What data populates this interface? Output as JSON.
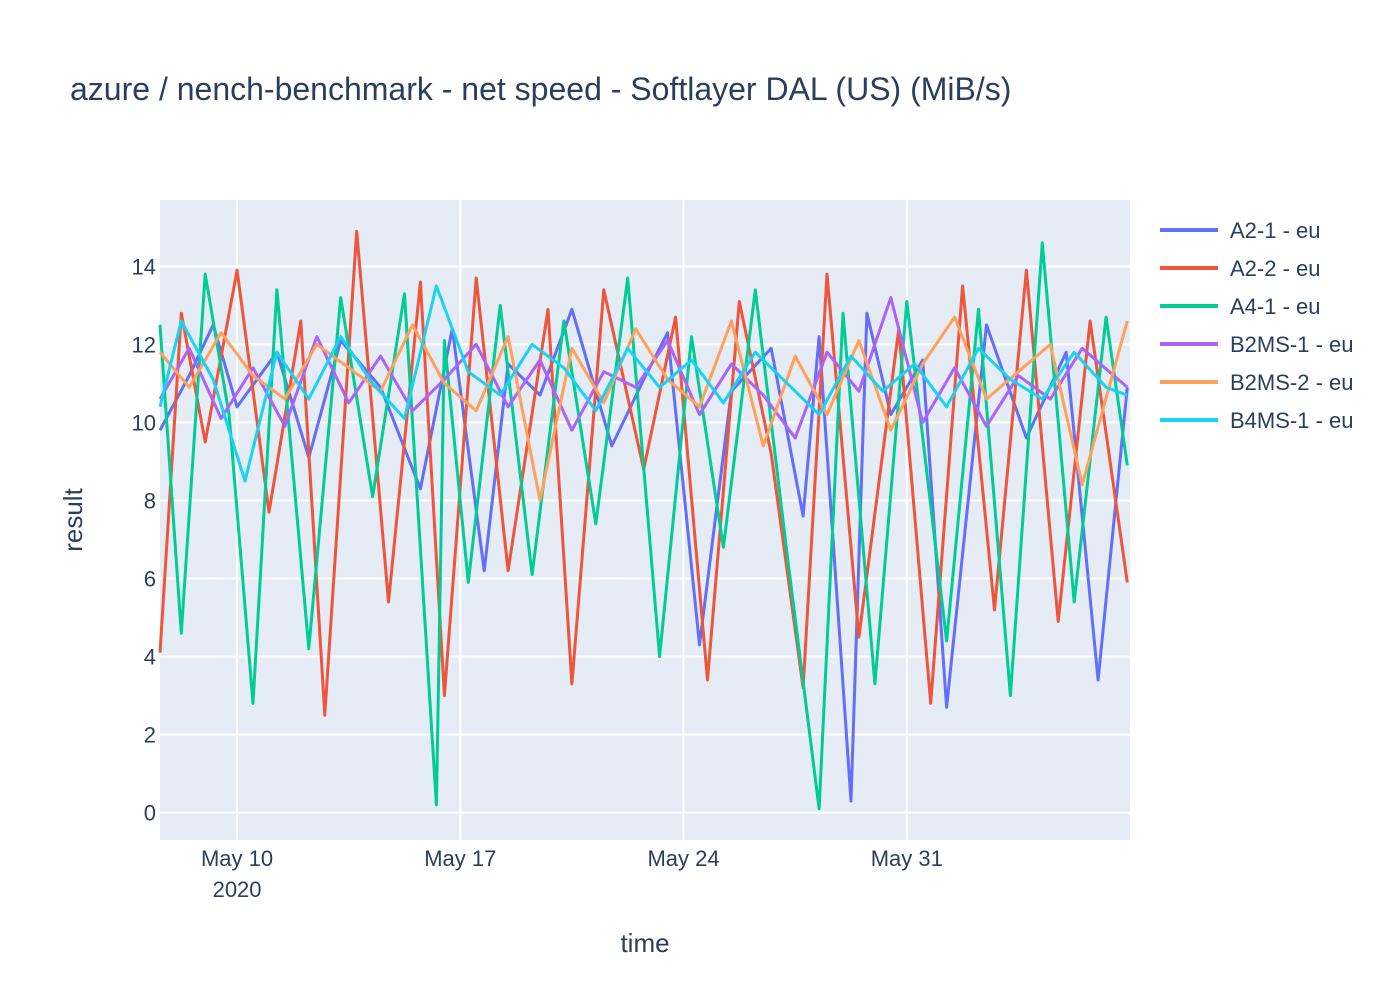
{
  "chart_data": {
    "type": "line",
    "title": "azure / nench-benchmark - net speed - Softlayer DAL (US) (MiB/s)",
    "xlabel": "time",
    "ylabel": "result",
    "x_range": [
      "2020-05-07T14:00:00",
      "2020-06-07T00:00:00"
    ],
    "ylim": [
      -0.7,
      15.7
    ],
    "y_ticks": [
      0,
      2,
      4,
      6,
      8,
      10,
      12,
      14
    ],
    "x_ticks": [
      {
        "date": "2020-05-10",
        "label": "May 10",
        "sublabel": "2020"
      },
      {
        "date": "2020-05-17",
        "label": "May 17",
        "sublabel": ""
      },
      {
        "date": "2020-05-24",
        "label": "May 24",
        "sublabel": ""
      },
      {
        "date": "2020-05-31",
        "label": "May 31",
        "sublabel": ""
      }
    ],
    "grid": true,
    "legend_position": "right",
    "plot_background": "#e5ecf6",
    "series": [
      {
        "name": "A2-1 - eu",
        "color": "#636efa",
        "x": [
          "2020-05-07T14:00",
          "2020-05-08T12:00",
          "2020-05-09T06:00",
          "2020-05-10T00:00",
          "2020-05-11T06:00",
          "2020-05-12T06:00",
          "2020-05-13T06:00",
          "2020-05-14T12:00",
          "2020-05-15T18:00",
          "2020-05-16T18:00",
          "2020-05-17T18:00",
          "2020-05-18T12:00",
          "2020-05-19T12:00",
          "2020-05-20T12:00",
          "2020-05-21T18:00",
          "2020-05-22T18:00",
          "2020-05-23T12:00",
          "2020-05-24T12:00",
          "2020-05-25T12:00",
          "2020-05-26T18:00",
          "2020-05-27T18:00",
          "2020-05-28T06:00",
          "2020-05-29T06:00",
          "2020-05-29T18:00",
          "2020-05-30T12:00",
          "2020-05-31T12:00",
          "2020-06-01T06:00",
          "2020-06-02T12:00",
          "2020-06-03T18:00",
          "2020-06-05T00:00",
          "2020-06-06T00:00",
          "2020-06-06T22:00"
        ],
        "y": [
          9.8,
          11.2,
          12.5,
          10.4,
          11.8,
          9.1,
          12.1,
          10.9,
          8.3,
          12.4,
          6.2,
          11.5,
          10.7,
          12.9,
          9.4,
          11.1,
          12.3,
          4.3,
          10.8,
          11.9,
          7.6,
          12.2,
          0.3,
          12.8,
          10.2,
          11.6,
          2.7,
          12.5,
          9.6,
          11.8,
          3.4,
          10.9
        ]
      },
      {
        "name": "A2-2 - eu",
        "color": "#ef553b",
        "x": [
          "2020-05-07T14:00",
          "2020-05-08T06:00",
          "2020-05-09T00:00",
          "2020-05-10T00:00",
          "2020-05-11T00:00",
          "2020-05-12T00:00",
          "2020-05-12T18:00",
          "2020-05-13T18:00",
          "2020-05-14T18:00",
          "2020-05-15T18:00",
          "2020-05-16T12:00",
          "2020-05-17T12:00",
          "2020-05-18T12:00",
          "2020-05-19T18:00",
          "2020-05-20T12:00",
          "2020-05-21T12:00",
          "2020-05-22T18:00",
          "2020-05-23T18:00",
          "2020-05-24T18:00",
          "2020-05-25T18:00",
          "2020-05-26T18:00",
          "2020-05-27T18:00",
          "2020-05-28T12:00",
          "2020-05-29T12:00",
          "2020-05-30T18:00",
          "2020-05-31T18:00",
          "2020-06-01T18:00",
          "2020-06-02T18:00",
          "2020-06-03T18:00",
          "2020-06-04T18:00",
          "2020-06-05T18:00",
          "2020-06-06T22:00"
        ],
        "y": [
          4.1,
          12.8,
          9.5,
          13.9,
          7.7,
          12.6,
          2.5,
          14.9,
          5.4,
          13.6,
          3.0,
          13.7,
          6.2,
          12.9,
          3.3,
          13.4,
          8.8,
          12.7,
          3.4,
          13.1,
          9.2,
          3.2,
          13.8,
          4.5,
          12.4,
          2.8,
          13.5,
          5.2,
          13.9,
          4.9,
          12.6,
          5.9
        ]
      },
      {
        "name": "A4-1 - eu",
        "color": "#00cc96",
        "x": [
          "2020-05-07T14:00",
          "2020-05-08T06:00",
          "2020-05-09T00:00",
          "2020-05-09T18:00",
          "2020-05-10T12:00",
          "2020-05-11T06:00",
          "2020-05-12T06:00",
          "2020-05-13T06:00",
          "2020-05-14T06:00",
          "2020-05-15T06:00",
          "2020-05-16T06:00",
          "2020-05-16T12:00",
          "2020-05-17T06:00",
          "2020-05-18T06:00",
          "2020-05-19T06:00",
          "2020-05-20T06:00",
          "2020-05-21T06:00",
          "2020-05-22T06:00",
          "2020-05-23T06:00",
          "2020-05-24T06:00",
          "2020-05-25T06:00",
          "2020-05-26T06:00",
          "2020-05-27T06:00",
          "2020-05-28T06:00",
          "2020-05-29T00:00",
          "2020-05-30T00:00",
          "2020-05-31T00:00",
          "2020-06-01T06:00",
          "2020-06-02T06:00",
          "2020-06-03T06:00",
          "2020-06-04T06:00",
          "2020-06-05T06:00",
          "2020-06-06T06:00",
          "2020-06-06T22:00"
        ],
        "y": [
          12.5,
          4.6,
          13.8,
          10.2,
          2.8,
          13.4,
          4.2,
          13.2,
          8.1,
          13.3,
          0.2,
          12.1,
          5.9,
          13.0,
          6.1,
          12.6,
          7.4,
          13.7,
          4.0,
          12.2,
          6.8,
          13.4,
          6.6,
          0.1,
          12.8,
          3.3,
          13.1,
          4.4,
          12.9,
          3.0,
          14.6,
          5.4,
          12.7,
          8.9
        ]
      },
      {
        "name": "B2MS-1 - eu",
        "color": "#ab63fa",
        "x": [
          "2020-05-07T14:00",
          "2020-05-08T12:00",
          "2020-05-09T12:00",
          "2020-05-10T12:00",
          "2020-05-11T12:00",
          "2020-05-12T12:00",
          "2020-05-13T12:00",
          "2020-05-14T12:00",
          "2020-05-15T12:00",
          "2020-05-16T12:00",
          "2020-05-17T12:00",
          "2020-05-18T12:00",
          "2020-05-19T12:00",
          "2020-05-20T12:00",
          "2020-05-21T12:00",
          "2020-05-22T12:00",
          "2020-05-23T12:00",
          "2020-05-24T12:00",
          "2020-05-25T12:00",
          "2020-05-26T12:00",
          "2020-05-27T12:00",
          "2020-05-28T12:00",
          "2020-05-29T12:00",
          "2020-05-30T12:00",
          "2020-05-31T12:00",
          "2020-06-01T12:00",
          "2020-06-02T12:00",
          "2020-06-03T12:00",
          "2020-06-04T12:00",
          "2020-06-05T12:00",
          "2020-06-06T22:00"
        ],
        "y": [
          10.6,
          11.9,
          10.1,
          11.4,
          9.9,
          12.2,
          10.5,
          11.7,
          10.3,
          11.1,
          12.0,
          10.4,
          11.6,
          9.8,
          11.3,
          10.9,
          12.1,
          10.2,
          11.5,
          10.7,
          9.6,
          11.8,
          10.8,
          13.2,
          10.0,
          11.4,
          9.9,
          11.2,
          10.6,
          11.9,
          10.9
        ]
      },
      {
        "name": "B2MS-2 - eu",
        "color": "#ffa15a",
        "x": [
          "2020-05-07T14:00",
          "2020-05-08T12:00",
          "2020-05-09T12:00",
          "2020-05-10T12:00",
          "2020-05-11T12:00",
          "2020-05-12T12:00",
          "2020-05-13T12:00",
          "2020-05-14T12:00",
          "2020-05-15T12:00",
          "2020-05-16T12:00",
          "2020-05-17T12:00",
          "2020-05-18T12:00",
          "2020-05-19T12:00",
          "2020-05-20T12:00",
          "2020-05-21T12:00",
          "2020-05-22T12:00",
          "2020-05-23T12:00",
          "2020-05-24T12:00",
          "2020-05-25T12:00",
          "2020-05-26T12:00",
          "2020-05-27T12:00",
          "2020-05-28T12:00",
          "2020-05-29T12:00",
          "2020-05-30T12:00",
          "2020-05-31T12:00",
          "2020-06-01T12:00",
          "2020-06-02T12:00",
          "2020-06-03T12:00",
          "2020-06-04T12:00",
          "2020-06-05T12:00",
          "2020-06-06T22:00"
        ],
        "y": [
          11.8,
          10.9,
          12.3,
          11.2,
          10.6,
          12.0,
          11.4,
          10.8,
          12.5,
          11.0,
          10.3,
          12.2,
          8.0,
          11.9,
          10.5,
          12.4,
          11.1,
          10.4,
          12.6,
          9.4,
          11.7,
          10.2,
          12.1,
          9.8,
          11.5,
          12.7,
          10.6,
          11.3,
          12.0,
          8.4,
          12.6
        ]
      },
      {
        "name": "B4MS-1 - eu",
        "color": "#19d3f3",
        "x": [
          "2020-05-07T14:00",
          "2020-05-08T06:00",
          "2020-05-09T06:00",
          "2020-05-10T06:00",
          "2020-05-11T06:00",
          "2020-05-12T06:00",
          "2020-05-13T06:00",
          "2020-05-14T06:00",
          "2020-05-15T06:00",
          "2020-05-16T06:00",
          "2020-05-17T06:00",
          "2020-05-18T06:00",
          "2020-05-19T06:00",
          "2020-05-20T06:00",
          "2020-05-21T06:00",
          "2020-05-22T06:00",
          "2020-05-23T06:00",
          "2020-05-24T06:00",
          "2020-05-25T06:00",
          "2020-05-26T06:00",
          "2020-05-27T06:00",
          "2020-05-28T06:00",
          "2020-05-29T06:00",
          "2020-05-30T06:00",
          "2020-05-31T06:00",
          "2020-06-01T06:00",
          "2020-06-02T06:00",
          "2020-06-03T06:00",
          "2020-06-04T06:00",
          "2020-06-05T06:00",
          "2020-06-06T06:00",
          "2020-06-06T22:00"
        ],
        "y": [
          10.4,
          12.6,
          11.1,
          8.5,
          11.8,
          10.6,
          12.2,
          11.0,
          10.1,
          13.5,
          11.3,
          10.7,
          12.0,
          11.4,
          10.3,
          11.9,
          10.9,
          11.6,
          10.5,
          11.8,
          11.0,
          10.2,
          11.7,
          10.8,
          11.5,
          10.4,
          11.9,
          11.1,
          10.6,
          11.8,
          10.9,
          10.7
        ]
      }
    ]
  }
}
